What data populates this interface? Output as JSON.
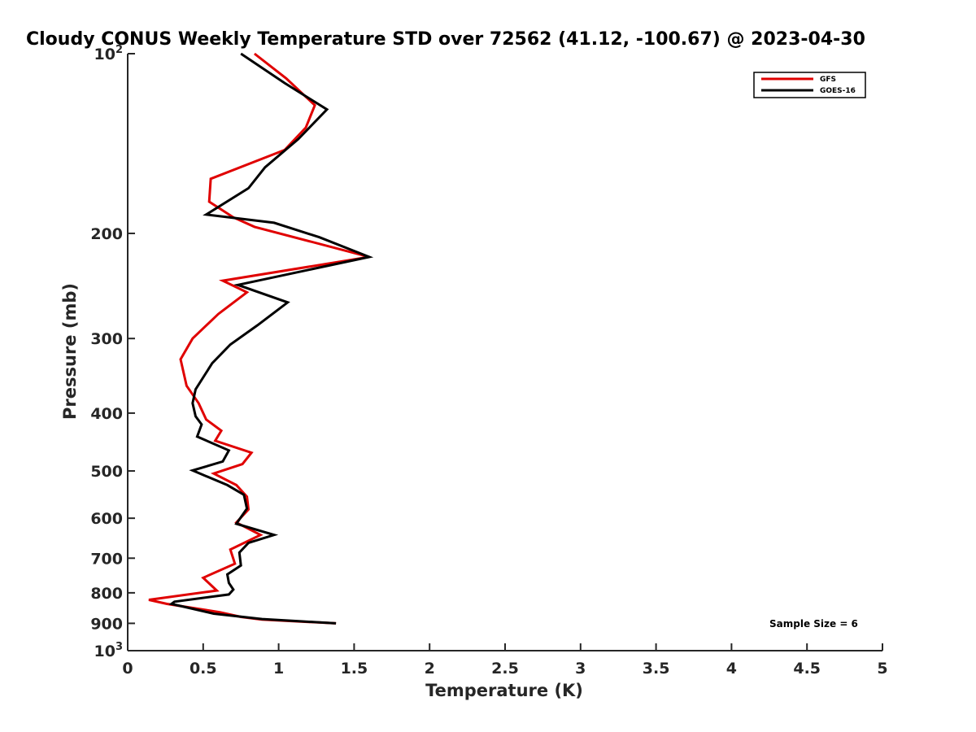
{
  "chart_data": {
    "type": "line",
    "title": "Cloudy CONUS Weekly Temperature STD over 72562 (41.12, -100.67) @ 2023-04-30",
    "xlabel": "Temperature (K)",
    "ylabel": "Pressure (mb)",
    "xlim": [
      0,
      5
    ],
    "ylim": [
      100,
      1000
    ],
    "yscale": "log",
    "y_reversed": true,
    "grid": false,
    "legend_position": "top-right",
    "x_ticks": [
      0,
      0.5,
      1,
      1.5,
      2,
      2.5,
      3,
      3.5,
      4,
      4.5,
      5
    ],
    "x_tick_labels": [
      "0",
      "0.5",
      "1",
      "1.5",
      "2",
      "2.5",
      "3",
      "3.5",
      "4",
      "4.5",
      "5"
    ],
    "y_ticks": [
      100,
      200,
      300,
      400,
      500,
      600,
      700,
      800,
      900,
      1000
    ],
    "y_tick_labels": [
      {
        "base": "10",
        "exp": "2"
      },
      {
        "base": "200",
        "exp": ""
      },
      {
        "base": "300",
        "exp": ""
      },
      {
        "base": "400",
        "exp": ""
      },
      {
        "base": "500",
        "exp": ""
      },
      {
        "base": "600",
        "exp": ""
      },
      {
        "base": "700",
        "exp": ""
      },
      {
        "base": "800",
        "exp": ""
      },
      {
        "base": "900",
        "exp": ""
      },
      {
        "base": "10",
        "exp": "3"
      }
    ],
    "series": [
      {
        "name": "GFS",
        "color": "#e00000",
        "points": [
          [
            0.84,
            100
          ],
          [
            1.05,
            110
          ],
          [
            1.24,
            122
          ],
          [
            1.18,
            133
          ],
          [
            1.04,
            145
          ],
          [
            0.55,
            162
          ],
          [
            0.54,
            177
          ],
          [
            0.7,
            188
          ],
          [
            0.84,
            195
          ],
          [
            1.6,
            219
          ],
          [
            0.63,
            240
          ],
          [
            0.79,
            251
          ],
          [
            0.6,
            273
          ],
          [
            0.43,
            300
          ],
          [
            0.35,
            325
          ],
          [
            0.39,
            360
          ],
          [
            0.47,
            385
          ],
          [
            0.52,
            410
          ],
          [
            0.62,
            428
          ],
          [
            0.58,
            445
          ],
          [
            0.82,
            466
          ],
          [
            0.76,
            487
          ],
          [
            0.57,
            505
          ],
          [
            0.72,
            528
          ],
          [
            0.79,
            552
          ],
          [
            0.8,
            580
          ],
          [
            0.72,
            610
          ],
          [
            0.88,
            640
          ],
          [
            0.68,
            677
          ],
          [
            0.71,
            715
          ],
          [
            0.5,
            755
          ],
          [
            0.59,
            793
          ],
          [
            0.14,
            822
          ],
          [
            0.26,
            835
          ],
          [
            0.61,
            862
          ],
          [
            0.75,
            878
          ],
          [
            0.89,
            887
          ],
          [
            1.38,
            900
          ]
        ]
      },
      {
        "name": "GOES-16",
        "color": "#000000",
        "points": [
          [
            0.75,
            100
          ],
          [
            1.04,
            112
          ],
          [
            1.32,
            124
          ],
          [
            1.13,
            139
          ],
          [
            0.91,
            155
          ],
          [
            0.8,
            168
          ],
          [
            0.52,
            186
          ],
          [
            0.97,
            192
          ],
          [
            1.27,
            203
          ],
          [
            1.6,
            219
          ],
          [
            0.73,
            244
          ],
          [
            1.06,
            261
          ],
          [
            0.86,
            285
          ],
          [
            0.68,
            307
          ],
          [
            0.56,
            330
          ],
          [
            0.45,
            365
          ],
          [
            0.43,
            385
          ],
          [
            0.45,
            405
          ],
          [
            0.49,
            418
          ],
          [
            0.46,
            438
          ],
          [
            0.67,
            462
          ],
          [
            0.63,
            482
          ],
          [
            0.43,
            499
          ],
          [
            0.66,
            528
          ],
          [
            0.77,
            548
          ],
          [
            0.79,
            578
          ],
          [
            0.72,
            613
          ],
          [
            0.97,
            640
          ],
          [
            0.8,
            660
          ],
          [
            0.74,
            685
          ],
          [
            0.75,
            720
          ],
          [
            0.66,
            745
          ],
          [
            0.67,
            770
          ],
          [
            0.7,
            790
          ],
          [
            0.67,
            805
          ],
          [
            0.31,
            828
          ],
          [
            0.29,
            835
          ],
          [
            0.57,
            867
          ],
          [
            0.89,
            885
          ],
          [
            1.38,
            900
          ]
        ]
      }
    ],
    "annotation": "Sample Size = 6"
  }
}
